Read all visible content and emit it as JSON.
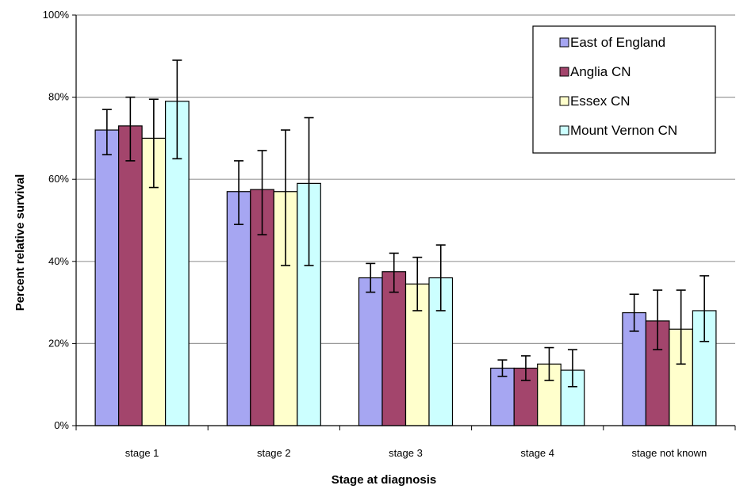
{
  "chart_data": {
    "type": "bar",
    "title": "",
    "xlabel": "Stage at diagnosis",
    "ylabel": "Percent relative survival",
    "ylim": [
      0,
      100
    ],
    "y_ticks": [
      "0%",
      "20%",
      "40%",
      "60%",
      "80%",
      "100%"
    ],
    "grid": true,
    "legend_position": "top-right",
    "categories": [
      "stage 1",
      "stage 2",
      "stage 3",
      "stage 4",
      "stage not known"
    ],
    "series": [
      {
        "name": "East of England",
        "color": "#a6a6f2",
        "values": [
          72,
          57,
          36,
          14,
          27.5
        ],
        "error_low": [
          66,
          49,
          32.5,
          12,
          23
        ],
        "error_high": [
          77,
          64.5,
          39.5,
          16,
          32
        ]
      },
      {
        "name": "Anglia CN",
        "color": "#a3456c",
        "values": [
          73,
          57.5,
          37.5,
          14,
          25.5
        ],
        "error_low": [
          64.5,
          46.5,
          32.5,
          11,
          18.5
        ],
        "error_high": [
          80,
          67,
          42,
          17,
          33
        ]
      },
      {
        "name": "Essex CN",
        "color": "#ffffcc",
        "values": [
          70,
          57,
          34.5,
          15,
          23.5
        ],
        "error_low": [
          58,
          39,
          28,
          11,
          15
        ],
        "error_high": [
          79.5,
          72,
          41,
          19,
          33
        ]
      },
      {
        "name": "Mount Vernon CN",
        "color": "#ccffff",
        "values": [
          79,
          59,
          36,
          13.5,
          28
        ],
        "error_low": [
          65,
          39,
          28,
          9.5,
          20.5
        ],
        "error_high": [
          89,
          75,
          44,
          18.5,
          36.5
        ]
      }
    ]
  }
}
